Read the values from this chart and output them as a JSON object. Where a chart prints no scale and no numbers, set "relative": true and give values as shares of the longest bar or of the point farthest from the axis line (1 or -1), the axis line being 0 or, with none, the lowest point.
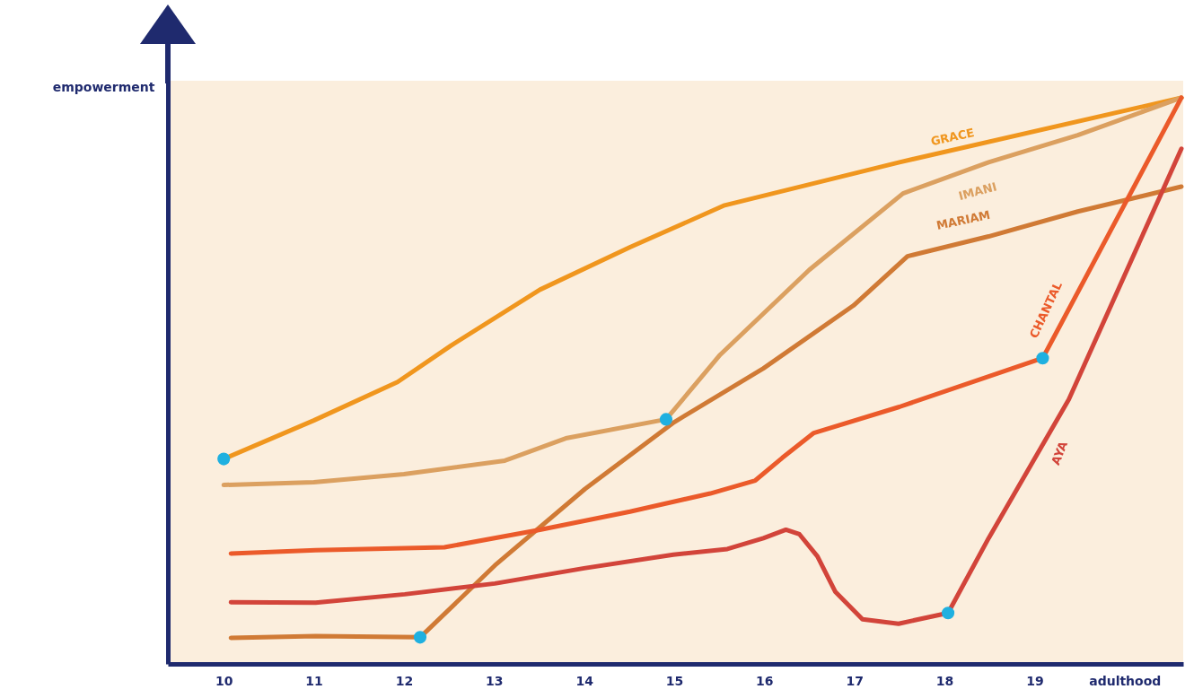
{
  "chart_data": {
    "type": "line",
    "ylabel": "empowerment",
    "relative": true,
    "xlim": [
      9.38,
      20.65
    ],
    "xticks": [
      10,
      11,
      12,
      13,
      14,
      15,
      16,
      17,
      18,
      19,
      {
        "value": 20,
        "label": "adulthood"
      }
    ],
    "grid": false,
    "series": [
      {
        "name": "GRACE",
        "color": "#f0961e",
        "x": [
          10,
          11,
          11.93,
          12.52,
          13.51,
          14.51,
          15.56,
          17.5,
          20.63
        ],
        "values": [
          0.362,
          0.43,
          0.498,
          0.562,
          0.661,
          0.736,
          0.81,
          0.886,
          1
        ]
      },
      {
        "name": "IMANI",
        "color": "#dba060",
        "x": [
          10,
          11,
          12,
          13.12,
          13.81,
          14.91,
          15.51,
          16.5,
          17.54,
          18.49,
          19.48,
          20.63
        ],
        "values": [
          0.316,
          0.321,
          0.335,
          0.359,
          0.399,
          0.432,
          0.546,
          0.696,
          0.831,
          0.886,
          0.934,
          1
        ]
      },
      {
        "name": "MARIAM",
        "color": "#d07a35",
        "x": [
          10.08,
          11.02,
          12.18,
          13.01,
          14.01,
          15,
          15.99,
          16.99,
          17.59,
          18.49,
          19.48,
          20.63
        ],
        "values": [
          0.046,
          0.049,
          0.047,
          0.174,
          0.309,
          0.427,
          0.522,
          0.633,
          0.72,
          0.755,
          0.799,
          0.843
        ]
      },
      {
        "name": "CHANTAL",
        "color": "#eb5a2a",
        "x": [
          10.08,
          11.02,
          12.45,
          13.51,
          14.51,
          15.4,
          15.9,
          16.2,
          16.55,
          17.5,
          19.09,
          20.63
        ],
        "values": [
          0.195,
          0.201,
          0.206,
          0.237,
          0.269,
          0.301,
          0.324,
          0.364,
          0.408,
          0.454,
          0.54,
          1
        ]
      },
      {
        "name": "AYA",
        "color": "#d2443a",
        "x": [
          10.08,
          11.02,
          12.01,
          13.01,
          14,
          14.99,
          15.59,
          15.99,
          16.24,
          16.39,
          16.59,
          16.79,
          17.09,
          17.49,
          18.04,
          18.49,
          19.38,
          20.63
        ],
        "values": [
          0.109,
          0.108,
          0.123,
          0.142,
          0.169,
          0.193,
          0.203,
          0.222,
          0.237,
          0.229,
          0.19,
          0.127,
          0.079,
          0.071,
          0.09,
          0.222,
          0.467,
          0.91
        ]
      },
      {
        "type": "scatter",
        "color": "#1fb0e0",
        "x": [
          10,
          12.18,
          14.91,
          18.04,
          19.09
        ],
        "values": [
          0.362,
          0.047,
          0.432,
          0.09,
          0.54
        ]
      }
    ]
  }
}
